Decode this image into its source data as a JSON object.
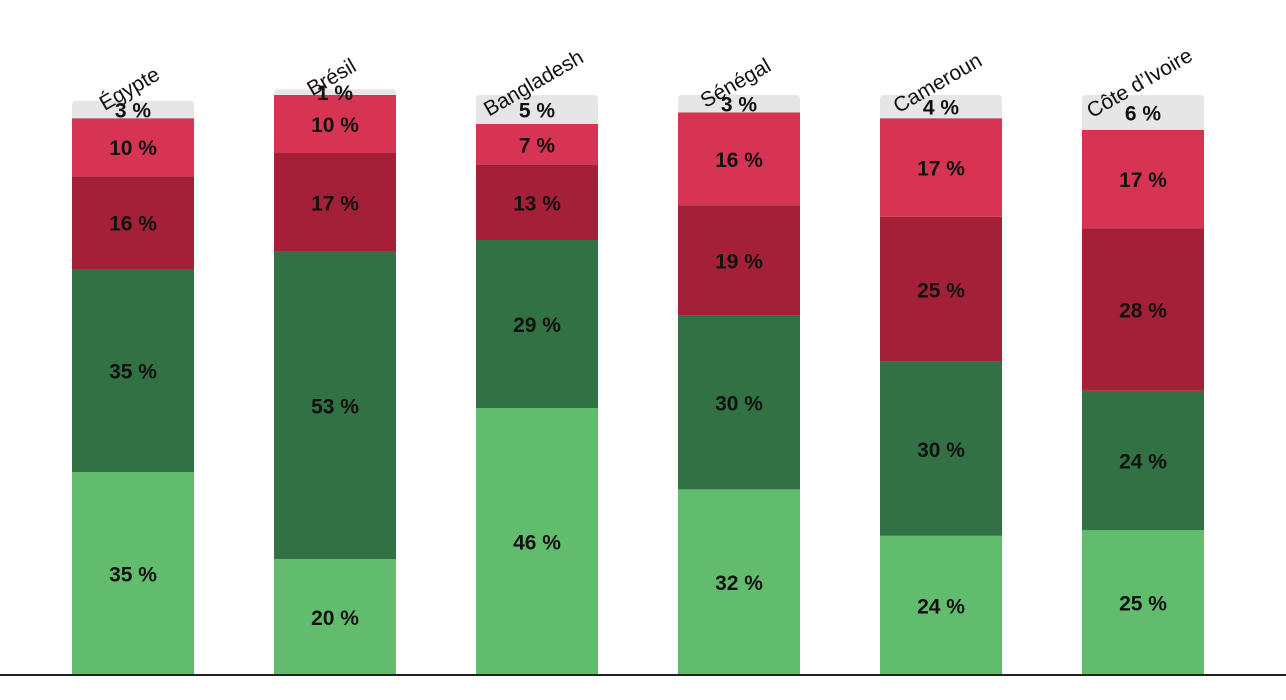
{
  "chart_data": {
    "type": "bar",
    "stacked": true,
    "orientation": "vertical",
    "categories": [
      "Égypte",
      "Brésil",
      "Bangladesh",
      "Sénégal",
      "Cameroun",
      "Côte d’Ivoire"
    ],
    "series": [
      {
        "values": [
          35,
          20,
          46,
          32,
          24,
          25
        ],
        "color": "#61bd6d"
      },
      {
        "values": [
          35,
          53,
          29,
          30,
          30,
          24
        ],
        "color": "#317143"
      },
      {
        "values": [
          16,
          17,
          13,
          19,
          25,
          28
        ],
        "color": "#a32038"
      },
      {
        "values": [
          10,
          10,
          7,
          16,
          17,
          17
        ],
        "color": "#d63452"
      },
      {
        "values": [
          3,
          1,
          5,
          3,
          4,
          6
        ],
        "color": "#e6e6e6"
      }
    ],
    "value_suffix": " %",
    "ylim": [
      0,
      100
    ],
    "grid": false,
    "legend": "none",
    "baseline_color": "#222222"
  }
}
